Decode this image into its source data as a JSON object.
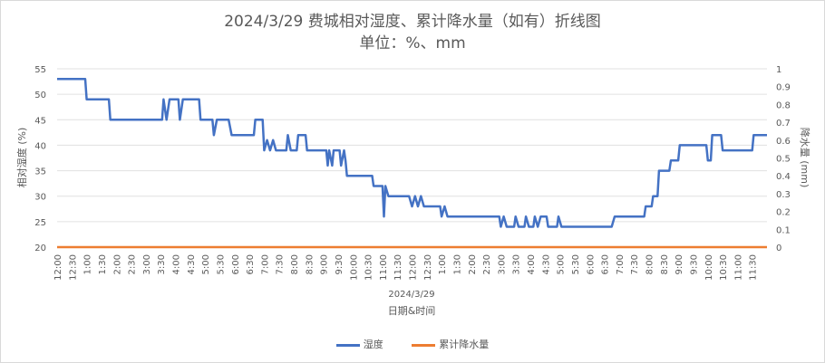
{
  "chart_data": {
    "type": "line",
    "title": "2024/3/29 费城相对湿度、累计降水量（如有）折线图",
    "subtitle": "单位：%、mm",
    "xlabel": "日期&时间",
    "x_group_label": "2024/3/29",
    "ylabel_left": "相对湿度 (%)",
    "ylabel_right": "降水量 (mm)",
    "ylim_left": [
      20,
      55
    ],
    "yticks_left": [
      20,
      25,
      30,
      35,
      40,
      45,
      50,
      55
    ],
    "ylim_right": [
      0,
      1
    ],
    "yticks_right": [
      "0",
      "0.1",
      "0.2",
      "0.3",
      "0.4",
      "0.5",
      "0.6",
      "0.7",
      "0.8",
      "0.9",
      "1"
    ],
    "x_tick_labels": [
      "12:00",
      "12:30",
      "1:00",
      "1:30",
      "2:00",
      "2:30",
      "3:00",
      "3:30",
      "4:00",
      "4:30",
      "5:00",
      "5:30",
      "6:00",
      "6:30",
      "7:00",
      "7:30",
      "8:00",
      "8:30",
      "9:00",
      "9:30",
      "10:00",
      "10:30",
      "11:00",
      "11:30",
      "12:00",
      "12:30",
      "1:00",
      "1:30",
      "2:00",
      "2:30",
      "3:00",
      "3:30",
      "4:00",
      "4:30",
      "5:00",
      "5:30",
      "6:00",
      "6:30",
      "7:00",
      "7:30",
      "8:00",
      "8:30",
      "9:00",
      "9:30",
      "10:00",
      "10:30",
      "11:00",
      "11:30"
    ],
    "grid": "horizontal",
    "legend_position": "bottom",
    "series": [
      {
        "name": "湿度",
        "color": "#4472c4",
        "axis": "left",
        "points": [
          [
            0.0,
            53
          ],
          [
            1.9,
            53
          ],
          [
            2.0,
            49
          ],
          [
            3.5,
            49
          ],
          [
            3.6,
            45
          ],
          [
            7.1,
            45
          ],
          [
            7.2,
            49
          ],
          [
            7.4,
            45
          ],
          [
            7.6,
            49
          ],
          [
            8.2,
            49
          ],
          [
            8.3,
            45
          ],
          [
            8.5,
            49
          ],
          [
            9.6,
            49
          ],
          [
            9.7,
            45
          ],
          [
            10.5,
            45
          ],
          [
            10.6,
            42
          ],
          [
            10.8,
            45
          ],
          [
            11.6,
            45
          ],
          [
            11.8,
            42
          ],
          [
            13.3,
            42
          ],
          [
            13.4,
            45
          ],
          [
            13.9,
            45
          ],
          [
            14.0,
            39
          ],
          [
            14.2,
            41
          ],
          [
            14.4,
            39
          ],
          [
            14.6,
            41
          ],
          [
            14.8,
            39
          ],
          [
            15.5,
            39
          ],
          [
            15.6,
            42
          ],
          [
            15.8,
            39
          ],
          [
            16.2,
            39
          ],
          [
            16.3,
            42
          ],
          [
            16.8,
            42
          ],
          [
            16.9,
            39
          ],
          [
            18.2,
            39
          ],
          [
            18.3,
            36
          ],
          [
            18.4,
            39
          ],
          [
            18.6,
            36
          ],
          [
            18.7,
            39
          ],
          [
            19.1,
            39
          ],
          [
            19.2,
            36
          ],
          [
            19.4,
            39
          ],
          [
            19.5,
            37
          ],
          [
            19.6,
            34
          ],
          [
            21.3,
            34
          ],
          [
            21.4,
            32
          ],
          [
            22.0,
            32
          ],
          [
            22.1,
            26
          ],
          [
            22.2,
            32
          ],
          [
            22.4,
            30
          ],
          [
            23.8,
            30
          ],
          [
            24.0,
            28
          ],
          [
            24.2,
            30
          ],
          [
            24.4,
            28
          ],
          [
            24.6,
            30
          ],
          [
            24.8,
            28
          ],
          [
            25.9,
            28
          ],
          [
            26.0,
            26
          ],
          [
            26.2,
            28
          ],
          [
            26.4,
            26
          ],
          [
            29.9,
            26
          ],
          [
            30.0,
            24
          ],
          [
            30.2,
            26
          ],
          [
            30.4,
            24
          ],
          [
            30.9,
            24
          ],
          [
            31.0,
            26
          ],
          [
            31.2,
            24
          ],
          [
            31.6,
            24
          ],
          [
            31.7,
            26
          ],
          [
            31.9,
            24
          ],
          [
            32.2,
            24
          ],
          [
            32.3,
            26
          ],
          [
            32.5,
            24
          ],
          [
            32.7,
            26
          ],
          [
            33.1,
            26
          ],
          [
            33.2,
            24
          ],
          [
            33.8,
            24
          ],
          [
            33.9,
            26
          ],
          [
            34.1,
            24
          ],
          [
            37.5,
            24
          ],
          [
            37.7,
            26
          ],
          [
            39.7,
            26
          ],
          [
            39.8,
            28
          ],
          [
            40.2,
            28
          ],
          [
            40.3,
            30
          ],
          [
            40.6,
            30
          ],
          [
            40.7,
            35
          ],
          [
            41.4,
            35
          ],
          [
            41.5,
            37
          ],
          [
            42.0,
            37
          ],
          [
            42.1,
            40
          ],
          [
            43.9,
            40
          ],
          [
            44.0,
            37
          ],
          [
            44.2,
            37
          ],
          [
            44.3,
            42
          ],
          [
            44.9,
            42
          ],
          [
            45.0,
            39
          ],
          [
            47.0,
            39
          ],
          [
            47.1,
            42
          ],
          [
            48.0,
            42
          ]
        ]
      },
      {
        "name": "累计降水量",
        "color": "#ed7d31",
        "axis": "right",
        "points": [
          [
            0.0,
            0
          ],
          [
            48.0,
            0
          ]
        ]
      }
    ]
  }
}
